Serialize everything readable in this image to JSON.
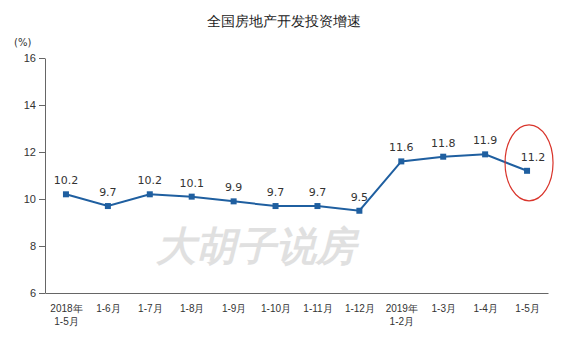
{
  "chart_data": {
    "type": "line",
    "title": "全国房地产开发投资增速",
    "y_label": "(%)",
    "watermark": "大胡子说房",
    "categories": [
      "2018年\n1-5月",
      "1-6月",
      "1-7月",
      "1-8月",
      "1-9月",
      "1-10月",
      "1-11月",
      "1-12月",
      "2019年\n1-2月",
      "1-3月",
      "1-4月",
      "1-5月"
    ],
    "values": [
      10.2,
      9.7,
      10.2,
      10.1,
      9.9,
      9.7,
      9.7,
      9.5,
      11.6,
      11.8,
      11.9,
      11.2
    ],
    "color": "#1f5fa0",
    "marker": "square",
    "ylim": [
      6,
      16
    ],
    "yticks": [
      6,
      8,
      10,
      12,
      14,
      16
    ],
    "grid": false,
    "data_labels": true
  }
}
